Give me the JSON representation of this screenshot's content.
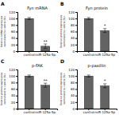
{
  "chart_data": [
    {
      "type": "bar",
      "panel_label": "A",
      "title": "Fyn mRNA",
      "ylabel": "Relative mRNA expression\nnormalized to control (%)",
      "categories": [
        "control",
        "miR-125a-5p"
      ],
      "values": [
        100,
        15
      ],
      "errors": [
        3,
        7
      ],
      "color": "#636363",
      "ylim": [
        0,
        120
      ],
      "yticks": [
        0,
        20,
        40,
        60,
        80,
        100,
        120
      ],
      "annotation": "**"
    },
    {
      "type": "bar",
      "panel_label": "B",
      "title": "Fyn protein",
      "ylabel": "Relative protein expression\nnormalized to control (%)",
      "categories": [
        "control",
        "miR-125a-5p"
      ],
      "values": [
        100,
        63
      ],
      "errors": [
        3,
        6
      ],
      "color": "#636363",
      "ylim": [
        0,
        120
      ],
      "yticks": [
        0,
        20,
        40,
        60,
        80,
        100,
        120
      ],
      "annotation": "*"
    },
    {
      "type": "bar",
      "panel_label": "C",
      "title": "p-FAK",
      "ylabel": "Relative protein expression\nnormalized to control (%)",
      "categories": [
        "control",
        "miR-125a-5p"
      ],
      "values": [
        100,
        72
      ],
      "errors": [
        3,
        6
      ],
      "color": "#636363",
      "ylim": [
        0,
        120
      ],
      "yticks": [
        0,
        20,
        40,
        60,
        80,
        100,
        120
      ],
      "annotation": "**"
    },
    {
      "type": "bar",
      "panel_label": "D",
      "title": "p-paxillin",
      "ylabel": "Relative protein expression\nnormalized to control (%)",
      "categories": [
        "control",
        "miR-125a-5p"
      ],
      "values": [
        100,
        70
      ],
      "errors": [
        3,
        6
      ],
      "color": "#636363",
      "ylim": [
        0,
        120
      ],
      "yticks": [
        0,
        20,
        40,
        60,
        80,
        100,
        120
      ],
      "annotation": "*"
    }
  ]
}
